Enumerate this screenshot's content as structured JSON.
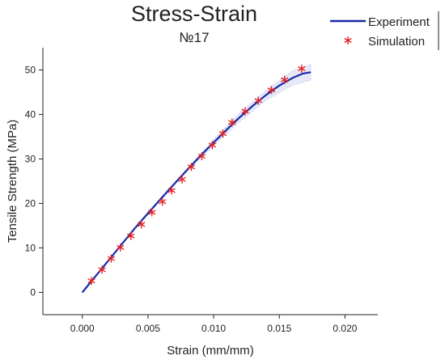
{
  "chart_data": {
    "type": "line",
    "title": "Stress-Strain",
    "subtitle": "№17",
    "xlabel": "Strain (mm/mm)",
    "ylabel": "Tensile Strength (MPa)",
    "xlim": [
      -0.003,
      0.0225
    ],
    "ylim": [
      -5,
      55
    ],
    "xticks": [
      "0.000",
      "0.005",
      "0.010",
      "0.015",
      "0.020"
    ],
    "yticks": [
      "0",
      "10",
      "20",
      "30",
      "40",
      "50"
    ],
    "grid": false,
    "legend_position": "top-right",
    "series": [
      {
        "name": "Experiment",
        "style": "line",
        "color": "#1a2aa8",
        "x": [
          0.0,
          0.001,
          0.002,
          0.003,
          0.004,
          0.005,
          0.006,
          0.007,
          0.008,
          0.009,
          0.01,
          0.011,
          0.012,
          0.013,
          0.014,
          0.015,
          0.016,
          0.0168,
          0.0174
        ],
        "y": [
          0.0,
          3.6,
          7.2,
          10.8,
          14.4,
          17.8,
          21.1,
          24.4,
          27.6,
          30.7,
          33.7,
          36.6,
          39.4,
          42.0,
          44.4,
          46.5,
          48.2,
          49.2,
          49.5
        ]
      },
      {
        "name": "Simulation",
        "style": "marker",
        "marker": "asterisk",
        "color": "#e82020",
        "x": [
          0.0007,
          0.0015,
          0.0022,
          0.0029,
          0.0037,
          0.0045,
          0.0053,
          0.0061,
          0.0068,
          0.0076,
          0.0083,
          0.0091,
          0.0099,
          0.0107,
          0.0114,
          0.0124,
          0.0134,
          0.0144,
          0.0154,
          0.0167
        ],
        "y": [
          2.6,
          5.1,
          7.6,
          10.1,
          12.7,
          15.3,
          18.0,
          20.4,
          22.9,
          25.4,
          28.2,
          30.6,
          33.1,
          35.7,
          38.2,
          40.7,
          43.1,
          45.5,
          47.8,
          50.3
        ]
      }
    ],
    "band": {
      "color": "#c8d0f0",
      "x": [
        0.0,
        0.004,
        0.008,
        0.01,
        0.012,
        0.014,
        0.016,
        0.0174
      ],
      "upper": [
        0.0,
        14.6,
        27.9,
        34.4,
        40.4,
        45.5,
        49.8,
        51.3
      ],
      "lower": [
        0.0,
        14.2,
        27.3,
        33.0,
        38.4,
        43.2,
        46.6,
        47.7
      ]
    }
  }
}
